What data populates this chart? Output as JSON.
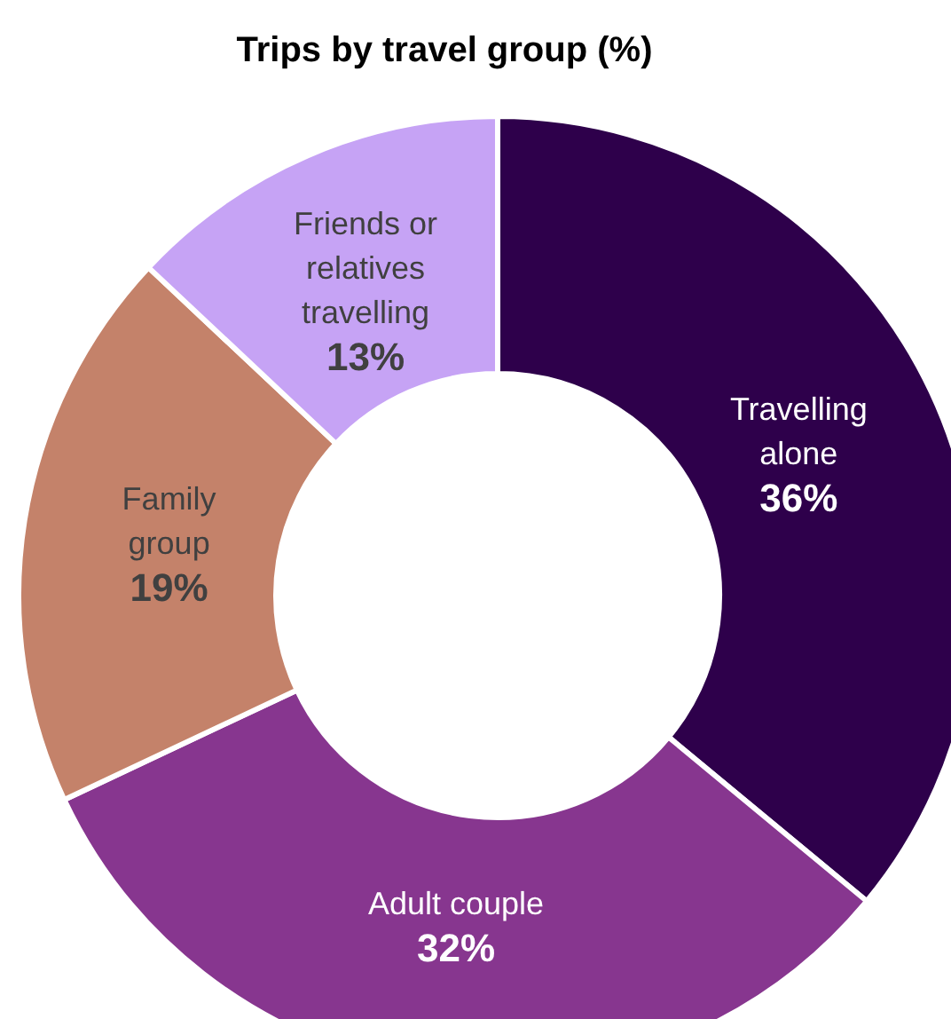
{
  "chart_data": {
    "type": "donut",
    "title": "Trips by travel group (%)",
    "categories": [
      "Travelling alone",
      "Adult couple",
      "Family group",
      "Friends or relatives travelling"
    ],
    "values": [
      36,
      32,
      19,
      13
    ],
    "value_labels": [
      "36%",
      "32%",
      "19%",
      "13%"
    ],
    "colors": [
      "#2e004b",
      "#87368f",
      "#c4826a",
      "#c6a3f5"
    ]
  }
}
